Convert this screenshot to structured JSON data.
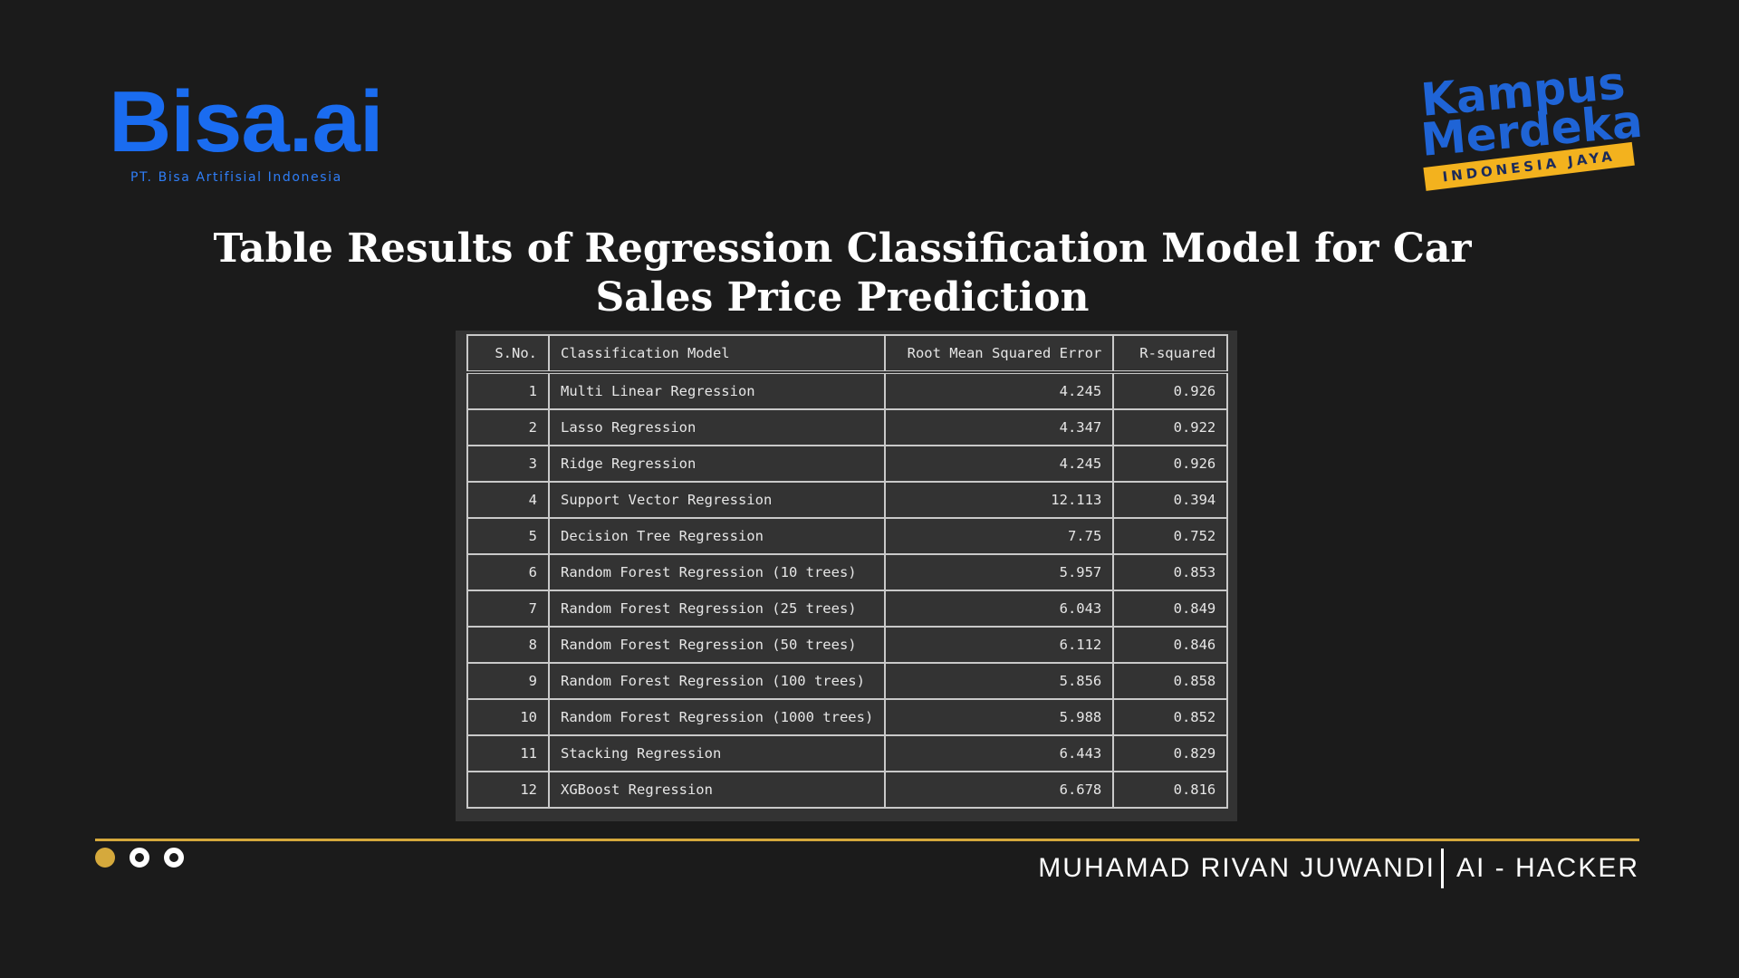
{
  "logos": {
    "left": {
      "name": "Bisa.ai",
      "subtitle": "PT. Bisa Artifisial Indonesia"
    },
    "right": {
      "line1": "Kampus",
      "line2": "Merdeka",
      "banner": "INDONESIA JAYA"
    }
  },
  "title": "Table Results of Regression Classification Model for Car Sales Price Prediction",
  "table": {
    "headers": [
      "S.No.",
      "Classification Model",
      "Root Mean Squared Error",
      "R-squared"
    ],
    "rows": [
      [
        "1",
        "Multi Linear Regression",
        "4.245",
        "0.926"
      ],
      [
        "2",
        "Lasso Regression",
        "4.347",
        "0.922"
      ],
      [
        "3",
        "Ridge Regression",
        "4.245",
        "0.926"
      ],
      [
        "4",
        "Support Vector Regression",
        "12.113",
        "0.394"
      ],
      [
        "5",
        "Decision Tree Regression",
        "7.75",
        "0.752"
      ],
      [
        "6",
        "Random Forest Regression (10 trees)",
        "5.957",
        "0.853"
      ],
      [
        "7",
        "Random Forest Regression (25 trees)",
        "6.043",
        "0.849"
      ],
      [
        "8",
        "Random Forest Regression (50 trees)",
        "6.112",
        "0.846"
      ],
      [
        "9",
        "Random Forest Regression (100 trees)",
        "5.856",
        "0.858"
      ],
      [
        "10",
        "Random Forest Regression (1000 trees)",
        "5.988",
        "0.852"
      ],
      [
        "11",
        "Stacking Regression",
        "6.443",
        "0.829"
      ],
      [
        "12",
        "XGBoost Regression",
        "6.678",
        "0.816"
      ]
    ]
  },
  "footer": {
    "name": "MUHAMAD RIVAN JUWANDI",
    "role": "AI - HACKER",
    "dots": [
      "filled",
      "ring",
      "ring"
    ]
  },
  "colors": {
    "background": "#1b1b1b",
    "accent_gold": "#d5a93c",
    "bisa_blue": "#1a6cf0",
    "kampus_blue": "#1f64d6",
    "kampus_banner": "#f3b21e"
  }
}
